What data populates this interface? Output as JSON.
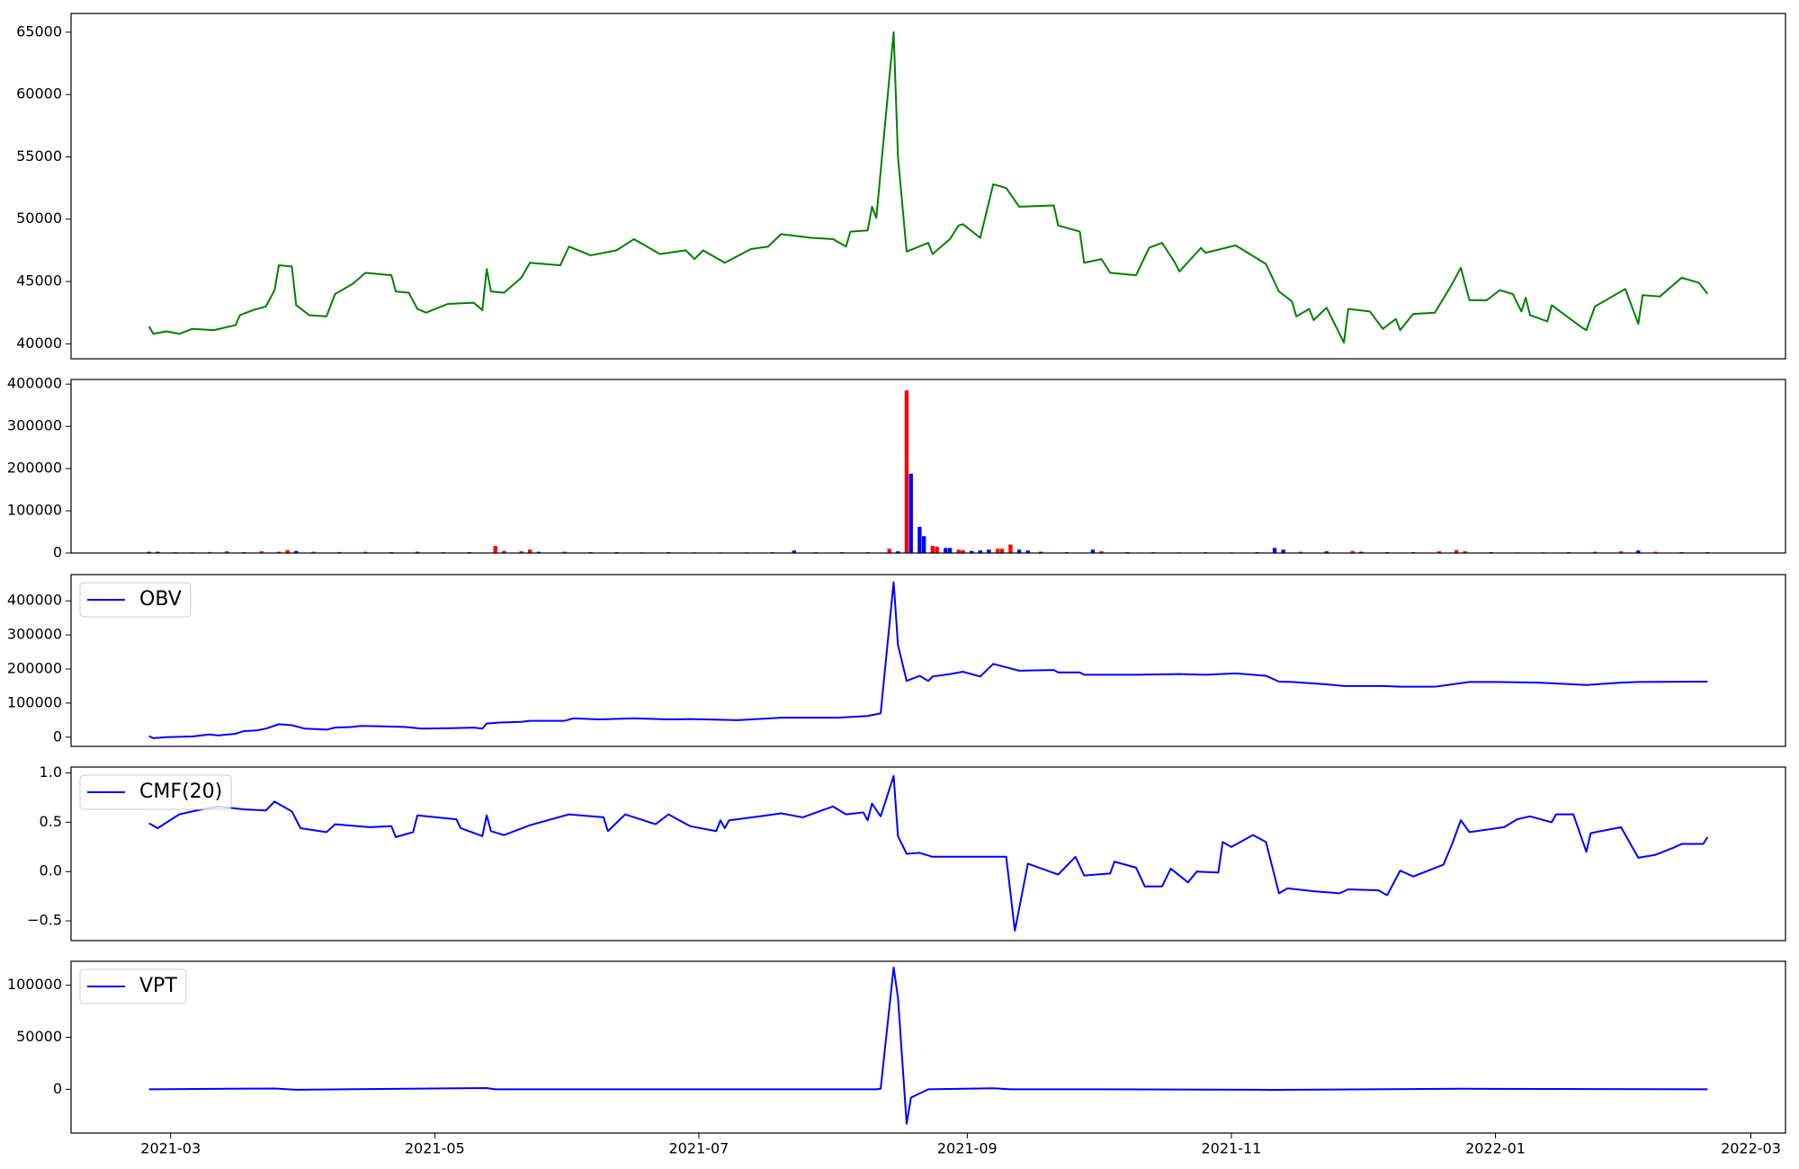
{
  "chart_data": [
    {
      "type": "line",
      "color": "#008000",
      "xlim": [
        -18,
        378
      ],
      "ylim": [
        38800,
        66500
      ],
      "yticks": [
        40000,
        45000,
        50000,
        55000,
        60000,
        65000
      ],
      "x": [
        0,
        1,
        4,
        7,
        10,
        15,
        20,
        21,
        24,
        27,
        29,
        30,
        33,
        34,
        37,
        41,
        43,
        47,
        50,
        56,
        57,
        60,
        62,
        64,
        69,
        75,
        77,
        78,
        79,
        82,
        86,
        88,
        95,
        97,
        102,
        108,
        112,
        118,
        124,
        126,
        128,
        133,
        139,
        143,
        146,
        153,
        158,
        161,
        162,
        166,
        167,
        168,
        172,
        173,
        175,
        180,
        181,
        185,
        187,
        188,
        192,
        195,
        198,
        201,
        209,
        210,
        215,
        216,
        220,
        222,
        228,
        231,
        234,
        237,
        238,
        243,
        244,
        251,
        258,
        261,
        264,
        265,
        268,
        269,
        272,
        276,
        277,
        282,
        285,
        288,
        289,
        292,
        297,
        301,
        303,
        305,
        309,
        312,
        315,
        317,
        318,
        319,
        323,
        324,
        331,
        332,
        334,
        341,
        344,
        345,
        349,
        354,
        358,
        360
      ],
      "values": [
        41400,
        40800,
        41000,
        40800,
        41200,
        41100,
        41500,
        42300,
        42700,
        43000,
        44300,
        46300,
        46200,
        43100,
        42300,
        42200,
        44000,
        44800,
        45700,
        45500,
        44200,
        44100,
        42800,
        42500,
        43200,
        43300,
        42700,
        46000,
        44200,
        44100,
        45300,
        46500,
        46300,
        47800,
        47100,
        47500,
        48400,
        47200,
        47500,
        46800,
        47500,
        46500,
        47600,
        47800,
        48800,
        48500,
        48400,
        47800,
        49000,
        49100,
        51000,
        50100,
        65000,
        55000,
        47400,
        48100,
        47200,
        48400,
        49500,
        49600,
        48500,
        52800,
        52500,
        51000,
        51100,
        49500,
        49000,
        46500,
        46800,
        45700,
        45500,
        47700,
        48100,
        46500,
        45800,
        47700,
        47300,
        47900,
        46400,
        44200,
        43400,
        42200,
        42800,
        41900,
        42900,
        40100,
        42800,
        42600,
        41200,
        42000,
        41100,
        42400,
        42500,
        44800,
        46100,
        43500,
        43500,
        44300,
        44000,
        42600,
        43700,
        42300,
        41800,
        43100,
        41300,
        41100,
        43000,
        44400,
        41600,
        43900,
        43800,
        45300,
        44900,
        44000
      ]
    },
    {
      "type": "bar",
      "xlim": [
        -18,
        378
      ],
      "ylim": [
        0,
        411000
      ],
      "yticks": [
        0,
        100000,
        200000,
        300000,
        400000
      ],
      "x": [
        0,
        2,
        6,
        10,
        14,
        18,
        22,
        26,
        30,
        32,
        34,
        38,
        44,
        50,
        56,
        62,
        68,
        74,
        80,
        82,
        86,
        88,
        90,
        96,
        102,
        108,
        114,
        120,
        126,
        132,
        138,
        144,
        149,
        154,
        160,
        166,
        171,
        173,
        175,
        176,
        178,
        179,
        181,
        182,
        184,
        185,
        187,
        188,
        190,
        192,
        194,
        196,
        197,
        199,
        201,
        203,
        206,
        212,
        218,
        220,
        226,
        232,
        238,
        244,
        250,
        256,
        260,
        262,
        266,
        272,
        278,
        280,
        286,
        292,
        298,
        302,
        304,
        310,
        316,
        322,
        328,
        334,
        340,
        344,
        348,
        354,
        360
      ],
      "values": [
        3000,
        3000,
        2000,
        1500,
        2500,
        4000,
        2000,
        4000,
        3000,
        7000,
        5000,
        3000,
        2500,
        3000,
        2000,
        3000,
        2000,
        2000,
        17000,
        5000,
        4000,
        8000,
        3000,
        3000,
        2000,
        2000,
        1500,
        2000,
        1500,
        1500,
        1500,
        2000,
        6000,
        2000,
        2000,
        2000,
        10000,
        4000,
        385000,
        188000,
        62000,
        40000,
        17000,
        15000,
        12000,
        12000,
        8000,
        7000,
        5000,
        6000,
        8000,
        10000,
        10000,
        20000,
        8000,
        6000,
        3000,
        2000,
        8000,
        4000,
        2000,
        2000,
        1500,
        2000,
        1500,
        2000,
        12000,
        8000,
        3000,
        4000,
        5000,
        3000,
        2000,
        2000,
        4000,
        7000,
        4000,
        2000,
        1500,
        1500,
        2000,
        3000,
        4000,
        6000,
        3000,
        2000,
        2000
      ],
      "colors": [
        "blue",
        "blue",
        "red",
        "blue",
        "red",
        "red",
        "blue",
        "red",
        "red",
        "red",
        "blue",
        "red",
        "red",
        "red",
        "blue",
        "blue",
        "red",
        "blue",
        "red",
        "red",
        "red",
        "red",
        "blue",
        "red",
        "blue",
        "blue",
        "red",
        "blue",
        "blue",
        "red",
        "blue",
        "red",
        "blue",
        "red",
        "blue",
        "red",
        "red",
        "blue",
        "red",
        "blue",
        "blue",
        "blue",
        "red",
        "red",
        "blue",
        "blue",
        "red",
        "red",
        "blue",
        "blue",
        "blue",
        "red",
        "red",
        "red",
        "blue",
        "blue",
        "blue",
        "red",
        "blue",
        "red",
        "blue",
        "red",
        "blue",
        "red",
        "blue",
        "blue",
        "blue",
        "blue",
        "red",
        "blue",
        "red",
        "blue",
        "blue",
        "red",
        "red",
        "red",
        "red",
        "blue",
        "blue",
        "blue",
        "blue",
        "red",
        "red",
        "blue",
        "red",
        "blue",
        "blue"
      ]
    },
    {
      "type": "line",
      "legend": "upper left",
      "xlim": [
        -18,
        378
      ],
      "ylim": [
        -27000,
        477000
      ],
      "yticks": [
        0,
        100000,
        200000,
        300000,
        400000
      ],
      "x": [
        0,
        1,
        4,
        10,
        14,
        16,
        20,
        22,
        25,
        27,
        30,
        33,
        36,
        41,
        43,
        47,
        49,
        53,
        59,
        63,
        69,
        75,
        77,
        78,
        81,
        86,
        88,
        96,
        98,
        104,
        112,
        120,
        125,
        136,
        146,
        159,
        166,
        169,
        172,
        173,
        175,
        178,
        180,
        181,
        185,
        188,
        192,
        195,
        198,
        201,
        209,
        210,
        215,
        216,
        228,
        238,
        244,
        251,
        258,
        261,
        264,
        272,
        276,
        285,
        289,
        297,
        305,
        311,
        321,
        332,
        340,
        344,
        360
      ],
      "series": [
        {
          "name": "OBV",
          "color": "#0000ff",
          "values": [
            3000,
            -3000,
            0,
            2000,
            8000,
            5000,
            10000,
            18000,
            20000,
            25000,
            38000,
            35000,
            25000,
            22000,
            28000,
            30000,
            33000,
            32000,
            30000,
            25000,
            26000,
            28000,
            25000,
            40000,
            43000,
            45000,
            48000,
            48000,
            55000,
            52000,
            55000,
            52000,
            53000,
            50000,
            57000,
            57000,
            62000,
            70000,
            455000,
            270000,
            165000,
            180000,
            165000,
            178000,
            185000,
            192000,
            178000,
            215000,
            205000,
            195000,
            197000,
            190000,
            190000,
            183000,
            183000,
            185000,
            183000,
            187000,
            180000,
            163000,
            162000,
            155000,
            150000,
            150000,
            148000,
            148000,
            162000,
            162000,
            160000,
            153000,
            160000,
            162000,
            163000
          ]
        }
      ]
    },
    {
      "type": "line",
      "legend": "upper left",
      "xlim": [
        -18,
        378
      ],
      "ylim": [
        -0.7,
        1.06
      ],
      "yticks": [
        {
          "value": -0.5,
          "label": "−0.5"
        },
        {
          "value": 0,
          "label": "0.0"
        },
        0.5,
        {
          "value": 1,
          "label": "1.0"
        }
      ],
      "x": [
        0,
        2,
        7,
        11,
        16,
        22,
        27,
        29,
        33,
        35,
        41,
        43,
        51,
        56,
        57,
        61,
        62,
        71,
        72,
        77,
        78,
        79,
        82,
        88,
        97,
        105,
        106,
        110,
        117,
        120,
        125,
        131,
        132,
        133,
        134,
        141,
        146,
        151,
        158,
        161,
        165,
        166,
        167,
        169,
        172,
        173,
        175,
        178,
        181,
        198,
        200,
        203,
        210,
        214,
        216,
        222,
        223,
        228,
        230,
        234,
        236,
        240,
        242,
        247,
        248,
        250,
        255,
        258,
        261,
        263,
        269,
        275,
        277,
        284,
        286,
        289,
        292,
        299,
        301,
        303,
        305,
        313,
        316,
        319,
        324,
        325,
        329,
        332,
        333,
        340,
        344,
        348,
        352,
        354,
        359,
        360
      ],
      "series": [
        {
          "name": "CMF(20)",
          "color": "#0000ff",
          "values": [
            0.49,
            0.44,
            0.58,
            0.62,
            0.66,
            0.63,
            0.62,
            0.71,
            0.61,
            0.44,
            0.4,
            0.48,
            0.45,
            0.46,
            0.35,
            0.4,
            0.57,
            0.53,
            0.44,
            0.36,
            0.57,
            0.41,
            0.37,
            0.47,
            0.58,
            0.55,
            0.41,
            0.58,
            0.48,
            0.58,
            0.46,
            0.41,
            0.52,
            0.44,
            0.52,
            0.56,
            0.59,
            0.55,
            0.66,
            0.58,
            0.6,
            0.52,
            0.69,
            0.56,
            0.97,
            0.36,
            0.18,
            0.19,
            0.15,
            0.15,
            -0.6,
            0.08,
            -0.03,
            0.15,
            -0.04,
            -0.02,
            0.1,
            0.04,
            -0.15,
            -0.15,
            0.03,
            -0.11,
            0,
            -0.01,
            0.3,
            0.25,
            0.37,
            0.3,
            -0.22,
            -0.17,
            -0.2,
            -0.22,
            -0.18,
            -0.19,
            -0.24,
            0.01,
            -0.05,
            0.07,
            0.28,
            0.52,
            0.4,
            0.45,
            0.53,
            0.56,
            0.5,
            0.58,
            0.58,
            0.2,
            0.39,
            0.45,
            0.14,
            0.17,
            0.24,
            0.28,
            0.28,
            0.35
          ]
        }
      ]
    },
    {
      "type": "line",
      "legend": "upper left",
      "xlim": [
        -18,
        378
      ],
      "ylim": [
        -42000,
        123000
      ],
      "yticks": [
        0,
        50000,
        100000
      ],
      "xticks": [
        {
          "value": 5,
          "label": "2021-03"
        },
        {
          "value": 66,
          "label": "2021-05"
        },
        {
          "value": 127,
          "label": "2021-07"
        },
        {
          "value": 189,
          "label": "2021-09"
        },
        {
          "value": 250,
          "label": "2021-11"
        },
        {
          "value": 311,
          "label": "2022-01"
        },
        {
          "value": 370,
          "label": "2022-03"
        }
      ],
      "x": [
        0,
        29,
        34,
        78,
        80,
        168,
        169,
        172,
        173,
        175,
        176,
        180,
        183,
        195,
        199,
        220,
        260,
        303,
        360
      ],
      "series": [
        {
          "name": "VPT",
          "color": "#0000ff",
          "values": [
            0,
            800,
            -400,
            1200,
            0,
            0,
            500,
            117000,
            88000,
            -33000,
            -8000,
            0,
            200,
            1000,
            0,
            0,
            -500,
            500,
            0
          ]
        }
      ]
    }
  ]
}
